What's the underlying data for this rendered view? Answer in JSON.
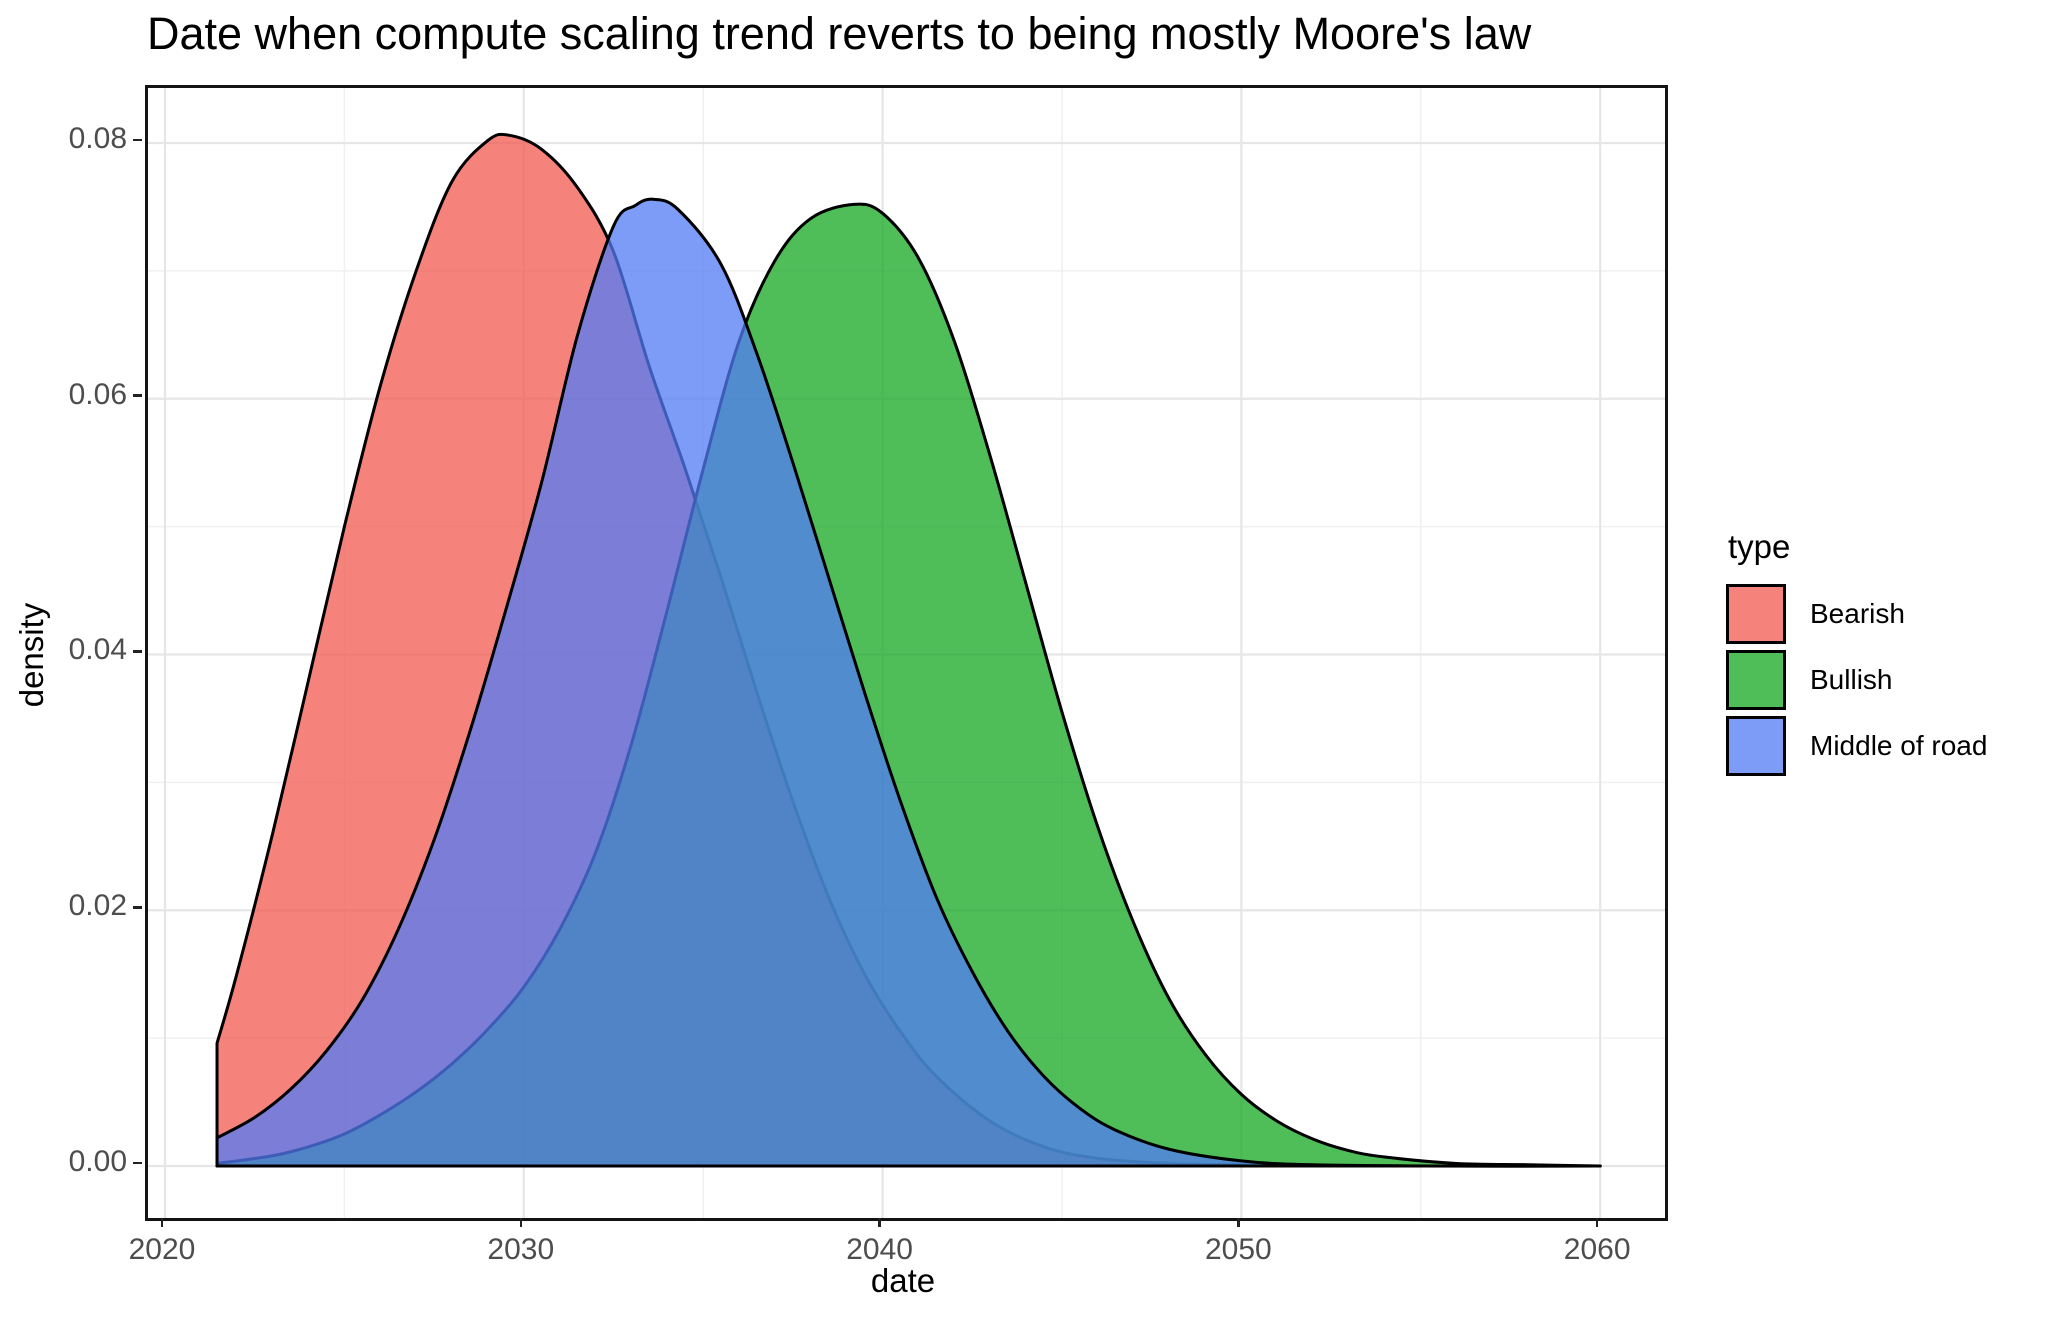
{
  "title": "Date when compute scaling trend reverts to being mostly Moore's law",
  "chart_data": {
    "type": "area",
    "subtype": "density",
    "title": "Date when compute scaling trend reverts to being mostly Moore's law",
    "xlabel": "date",
    "ylabel": "density",
    "xlim": [
      2019.526,
      2061.807
    ],
    "ylim": [
      -0.004066,
      0.0843
    ],
    "grid": "on",
    "x_ticks": [
      2020,
      2030,
      2040,
      2050,
      2060
    ],
    "x_tick_labels": [
      "2020",
      "2030",
      "2040",
      "2050",
      "2060"
    ],
    "x_minor_ticks": [
      2025,
      2035,
      2045,
      2055
    ],
    "y_ticks": [
      0,
      0.02,
      0.04,
      0.06,
      0.08
    ],
    "y_tick_labels": [
      "0.00",
      "0.02",
      "0.04",
      "0.06",
      "0.08"
    ],
    "y_minor_ticks": [
      0.01,
      0.03,
      0.05,
      0.07
    ],
    "legend": {
      "title": "type",
      "position": "right",
      "items": [
        {
          "label": "Bearish",
          "swatch_color": "#F5837B"
        },
        {
          "label": "Bullish",
          "swatch_color": "#4FBE59"
        },
        {
          "label": "Middle of road",
          "swatch_color": "#7D9CF8"
        }
      ]
    },
    "style": {
      "stroke_color": "#000000",
      "stroke_width": 3,
      "fill_opacity": 0.75,
      "grid_major_color": "#E6E6E6",
      "grid_minor_color": "#F0F0F0",
      "tick_label_color": "#4d4d4d",
      "panel_border_color": "#141414"
    },
    "series": [
      {
        "name": "Bearish",
        "color": "#F1594F",
        "peak": {
          "x": 2029.6,
          "y": 0.0806
        },
        "points": [
          [
            2021.45,
            0.0096
          ],
          [
            2022,
            0.015
          ],
          [
            2023,
            0.026
          ],
          [
            2024,
            0.038
          ],
          [
            2025,
            0.05
          ],
          [
            2026,
            0.061
          ],
          [
            2027,
            0.07
          ],
          [
            2028,
            0.077
          ],
          [
            2029,
            0.0802
          ],
          [
            2029.6,
            0.0806
          ],
          [
            2030.5,
            0.0795
          ],
          [
            2031.5,
            0.0765
          ],
          [
            2032.5,
            0.0715
          ],
          [
            2033.5,
            0.0625
          ],
          [
            2034.5,
            0.0545
          ],
          [
            2035.5,
            0.046
          ],
          [
            2036.5,
            0.037
          ],
          [
            2037.5,
            0.0285
          ],
          [
            2038.5,
            0.021
          ],
          [
            2039.5,
            0.015
          ],
          [
            2040.5,
            0.0105
          ],
          [
            2041.5,
            0.007
          ],
          [
            2043,
            0.0035
          ],
          [
            2044.5,
            0.0015
          ],
          [
            2046,
            0.0006
          ],
          [
            2048,
            0.0002
          ],
          [
            2050,
            0.0001
          ],
          [
            2055,
            0
          ],
          [
            2060,
            0
          ]
        ]
      },
      {
        "name": "Bullish",
        "color": "#14A821",
        "peak": {
          "x": 2039.2,
          "y": 0.0752
        },
        "points": [
          [
            2021.45,
            0.0002
          ],
          [
            2023,
            0.0008
          ],
          [
            2024,
            0.0015
          ],
          [
            2025,
            0.0025
          ],
          [
            2026,
            0.004
          ],
          [
            2027,
            0.0058
          ],
          [
            2028,
            0.008
          ],
          [
            2029,
            0.0107
          ],
          [
            2030,
            0.014
          ],
          [
            2031,
            0.0185
          ],
          [
            2032,
            0.0245
          ],
          [
            2033,
            0.033
          ],
          [
            2034,
            0.0435
          ],
          [
            2035,
            0.0545
          ],
          [
            2036,
            0.0645
          ],
          [
            2037,
            0.0708
          ],
          [
            2038,
            0.0741
          ],
          [
            2039.2,
            0.0752
          ],
          [
            2040,
            0.0745
          ],
          [
            2041,
            0.071
          ],
          [
            2042,
            0.0645
          ],
          [
            2043,
            0.0555
          ],
          [
            2044,
            0.0455
          ],
          [
            2045,
            0.0355
          ],
          [
            2046,
            0.0265
          ],
          [
            2047,
            0.019
          ],
          [
            2048,
            0.013
          ],
          [
            2049,
            0.0087
          ],
          [
            2050,
            0.0056
          ],
          [
            2051,
            0.0035
          ],
          [
            2052,
            0.0021
          ],
          [
            2053,
            0.0012
          ],
          [
            2054,
            0.0007
          ],
          [
            2056,
            0.0002
          ],
          [
            2058,
            0.0001
          ],
          [
            2060,
            0
          ]
        ]
      },
      {
        "name": "Middle of road",
        "color": "#517BF5",
        "peak": {
          "x": 2033.6,
          "y": 0.0756
        },
        "points": [
          [
            2021.45,
            0.0022
          ],
          [
            2022.5,
            0.0038
          ],
          [
            2023.5,
            0.006
          ],
          [
            2024.5,
            0.009
          ],
          [
            2025.5,
            0.013
          ],
          [
            2026.5,
            0.0185
          ],
          [
            2027.5,
            0.0255
          ],
          [
            2028.5,
            0.034
          ],
          [
            2029.5,
            0.0435
          ],
          [
            2030.5,
            0.0535
          ],
          [
            2031.5,
            0.065
          ],
          [
            2032.5,
            0.0735
          ],
          [
            2033.1,
            0.0751
          ],
          [
            2033.6,
            0.0756
          ],
          [
            2034.3,
            0.0748
          ],
          [
            2035.5,
            0.0705
          ],
          [
            2036.5,
            0.0635
          ],
          [
            2037.5,
            0.055
          ],
          [
            2038.5,
            0.046
          ],
          [
            2039.5,
            0.037
          ],
          [
            2040.5,
            0.0285
          ],
          [
            2041.5,
            0.021
          ],
          [
            2042.5,
            0.0152
          ],
          [
            2043.5,
            0.0105
          ],
          [
            2044.5,
            0.007
          ],
          [
            2045.5,
            0.0045
          ],
          [
            2046.5,
            0.0028
          ],
          [
            2048,
            0.0013
          ],
          [
            2050,
            0.0004
          ],
          [
            2052,
            0.0001
          ],
          [
            2056,
            0
          ],
          [
            2060,
            0
          ]
        ]
      }
    ]
  }
}
